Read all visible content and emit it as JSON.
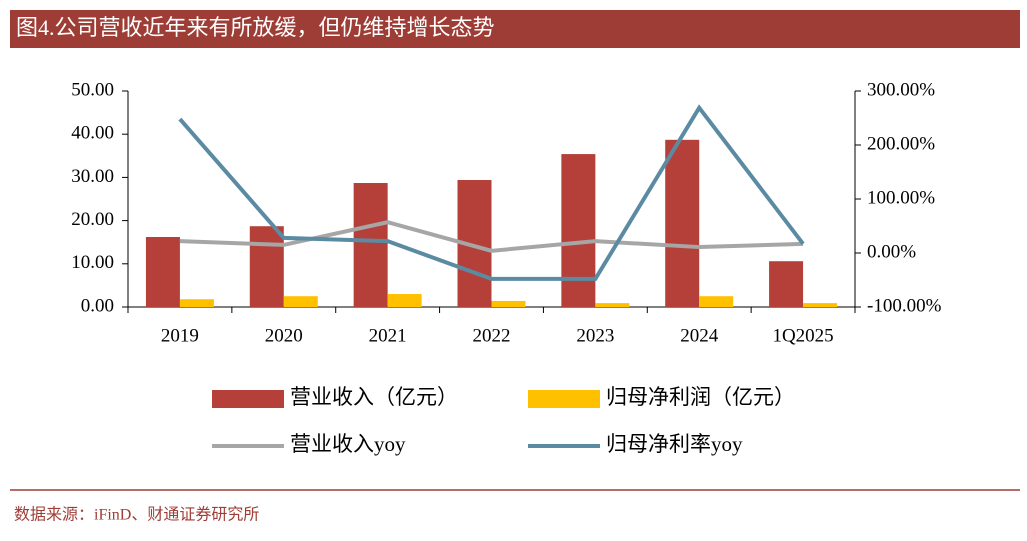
{
  "header": {
    "title": "图4.公司营收近年来有所放缓，但仍维持增长态势"
  },
  "chart_data": {
    "type": "bar",
    "categories": [
      "2019",
      "2020",
      "2021",
      "2022",
      "2023",
      "2024",
      "1Q2025"
    ],
    "series": [
      {
        "name": "营业收入（亿元）",
        "type": "bar",
        "color": "#b5403a",
        "values": [
          16.2,
          18.7,
          28.7,
          29.4,
          35.4,
          38.7,
          10.6
        ]
      },
      {
        "name": "归母净利润（亿元）",
        "type": "bar",
        "color": "#ffc000",
        "values": [
          1.8,
          2.5,
          3.0,
          1.4,
          0.9,
          2.5,
          0.9
        ]
      },
      {
        "name": "营业收入yoy",
        "type": "line",
        "axis": "y2",
        "color": "#a6a6a6",
        "values": [
          22,
          15,
          57,
          4,
          22,
          11,
          17
        ]
      },
      {
        "name": "归母净利率yoy",
        "type": "line",
        "axis": "y2",
        "color": "#5b8ba3",
        "values": [
          248,
          28,
          22,
          -48,
          -48,
          269,
          17
        ]
      }
    ],
    "ylim": [
      0,
      50
    ],
    "yticks": [
      {
        "value": 0,
        "label": "0.00"
      },
      {
        "value": 10,
        "label": "10.00"
      },
      {
        "value": 20,
        "label": "20.00"
      },
      {
        "value": 30,
        "label": "30.00"
      },
      {
        "value": 40,
        "label": "40.00"
      },
      {
        "value": 50,
        "label": "50.00"
      }
    ],
    "y2lim": [
      -100,
      300
    ],
    "y2ticks": [
      {
        "value": -100,
        "label": "-100.00%"
      },
      {
        "value": 0,
        "label": "0.00%"
      },
      {
        "value": 100,
        "label": "100.00%"
      },
      {
        "value": 200,
        "label": "200.00%"
      },
      {
        "value": 300,
        "label": "300.00%"
      }
    ]
  },
  "footer": {
    "source": "数据来源：iFinD、财通证券研究所"
  }
}
